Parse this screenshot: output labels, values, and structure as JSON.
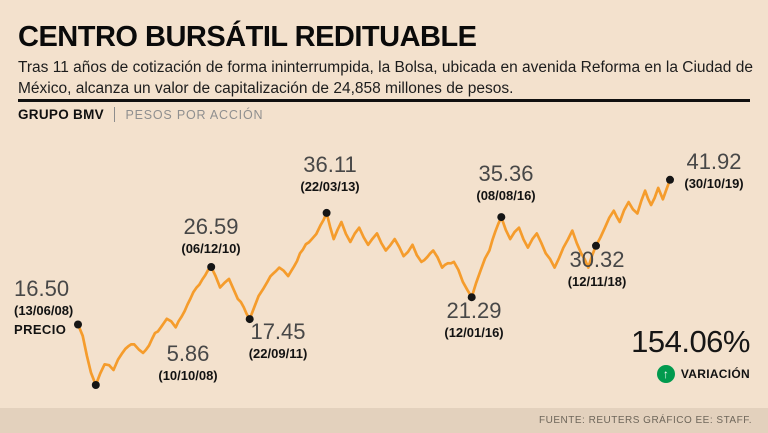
{
  "title": "CENTRO BURSÁTIL REDITUABLE",
  "intro": "Tras 11 años de cotización de forma ininterrumpida, la Bolsa, ubicada en avenida Reforma en la Ciudad de México, alcanza un valor de capitalización de 24,858 millones de pesos.",
  "series_header": {
    "name": "GRUPO BMV",
    "unit": "PESOS POR ACCIÓN"
  },
  "chart_data": {
    "type": "line",
    "title": "GRUPO BMV — Pesos por acción",
    "ylabel": "Pesos por acción",
    "x_range": "13/06/08 – 30/10/19",
    "ylim": [
      4,
      45
    ],
    "line_color": "#F59C2C",
    "marker_color": "#151515",
    "key_points": [
      {
        "value": "16.50",
        "date": "(13/06/08)",
        "note": "PRECIO",
        "t": 0.0,
        "v": 16.5
      },
      {
        "value": "5.86",
        "date": "(10/10/08)",
        "t": 0.03,
        "v": 5.86
      },
      {
        "value": "26.59",
        "date": "(06/12/10)",
        "t": 0.225,
        "v": 26.59
      },
      {
        "value": "17.45",
        "date": "(22/09/11)",
        "t": 0.29,
        "v": 17.45
      },
      {
        "value": "36.11",
        "date": "(22/03/13)",
        "t": 0.42,
        "v": 36.11
      },
      {
        "value": "21.29",
        "date": "(12/01/16)",
        "t": 0.665,
        "v": 21.29
      },
      {
        "value": "35.36",
        "date": "(08/08/16)",
        "t": 0.715,
        "v": 35.36
      },
      {
        "value": "30.32",
        "date": "(12/11/18)",
        "t": 0.875,
        "v": 30.32
      },
      {
        "value": "41.92",
        "date": "(30/10/19)",
        "t": 1.0,
        "v": 41.92
      }
    ],
    "path_estimate": [
      [
        0.0,
        16.5
      ],
      [
        0.008,
        14.5
      ],
      [
        0.015,
        11.0
      ],
      [
        0.022,
        8.0
      ],
      [
        0.03,
        5.86
      ],
      [
        0.045,
        9.5
      ],
      [
        0.06,
        8.5
      ],
      [
        0.075,
        11.5
      ],
      [
        0.095,
        13.0
      ],
      [
        0.11,
        11.5
      ],
      [
        0.13,
        15.0
      ],
      [
        0.15,
        17.5
      ],
      [
        0.165,
        16.0
      ],
      [
        0.185,
        20.0
      ],
      [
        0.205,
        23.5
      ],
      [
        0.225,
        26.59
      ],
      [
        0.24,
        23.0
      ],
      [
        0.255,
        24.5
      ],
      [
        0.27,
        21.0
      ],
      [
        0.29,
        17.45
      ],
      [
        0.305,
        21.5
      ],
      [
        0.32,
        24.0
      ],
      [
        0.34,
        26.5
      ],
      [
        0.355,
        25.0
      ],
      [
        0.375,
        29.0
      ],
      [
        0.395,
        31.5
      ],
      [
        0.41,
        34.0
      ],
      [
        0.42,
        36.11
      ],
      [
        0.432,
        31.5
      ],
      [
        0.445,
        34.5
      ],
      [
        0.46,
        31.0
      ],
      [
        0.475,
        33.5
      ],
      [
        0.49,
        30.5
      ],
      [
        0.505,
        32.5
      ],
      [
        0.52,
        29.5
      ],
      [
        0.535,
        31.5
      ],
      [
        0.55,
        28.5
      ],
      [
        0.565,
        30.5
      ],
      [
        0.58,
        27.5
      ],
      [
        0.6,
        29.5
      ],
      [
        0.615,
        26.5
      ],
      [
        0.635,
        27.5
      ],
      [
        0.65,
        24.0
      ],
      [
        0.665,
        21.29
      ],
      [
        0.68,
        26.0
      ],
      [
        0.695,
        29.5
      ],
      [
        0.715,
        35.36
      ],
      [
        0.73,
        31.5
      ],
      [
        0.745,
        33.5
      ],
      [
        0.76,
        30.0
      ],
      [
        0.775,
        32.5
      ],
      [
        0.79,
        29.0
      ],
      [
        0.805,
        26.5
      ],
      [
        0.82,
        30.0
      ],
      [
        0.835,
        33.0
      ],
      [
        0.85,
        29.0
      ],
      [
        0.862,
        26.5
      ],
      [
        0.875,
        30.32
      ],
      [
        0.89,
        33.5
      ],
      [
        0.905,
        36.5
      ],
      [
        0.915,
        34.5
      ],
      [
        0.93,
        38.0
      ],
      [
        0.945,
        36.0
      ],
      [
        0.958,
        40.0
      ],
      [
        0.968,
        37.5
      ],
      [
        0.98,
        40.5
      ],
      [
        0.988,
        38.5
      ],
      [
        1.0,
        41.92
      ]
    ]
  },
  "variation": {
    "value": "154.06%",
    "label": "VARIACIÓN",
    "arrow_color": "#019A4E"
  },
  "source": "FUENTE: REUTERS GRÁFICO EE: STAFF."
}
